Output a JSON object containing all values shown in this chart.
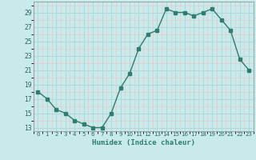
{
  "x": [
    0,
    1,
    2,
    3,
    4,
    5,
    6,
    7,
    8,
    9,
    10,
    11,
    12,
    13,
    14,
    15,
    16,
    17,
    18,
    19,
    20,
    21,
    22,
    23
  ],
  "y": [
    18,
    17,
    15.5,
    15,
    14,
    13.5,
    13,
    13,
    15,
    18.5,
    20.5,
    24,
    26,
    26.5,
    29.5,
    29,
    29,
    28.5,
    29,
    29.5,
    28,
    26.5,
    22.5,
    21
  ],
  "xlabel": "Humidex (Indice chaleur)",
  "xlim": [
    -0.5,
    23.5
  ],
  "ylim": [
    12.5,
    30.5
  ],
  "yticks": [
    13,
    15,
    17,
    19,
    21,
    23,
    25,
    27,
    29
  ],
  "xtick_labels": [
    "0",
    "1",
    "2",
    "3",
    "4",
    "5",
    "6",
    "7",
    "8",
    "9",
    "10",
    "11",
    "12",
    "13",
    "14",
    "15",
    "16",
    "17",
    "18",
    "19",
    "20",
    "21",
    "22",
    "23"
  ],
  "line_color": "#2e7d6e",
  "marker": "s",
  "marker_size": 2.5,
  "bg_color": "#c8eaea",
  "major_grid_color": "#b0d8d8",
  "minor_grid_color": "#e8c8c8"
}
